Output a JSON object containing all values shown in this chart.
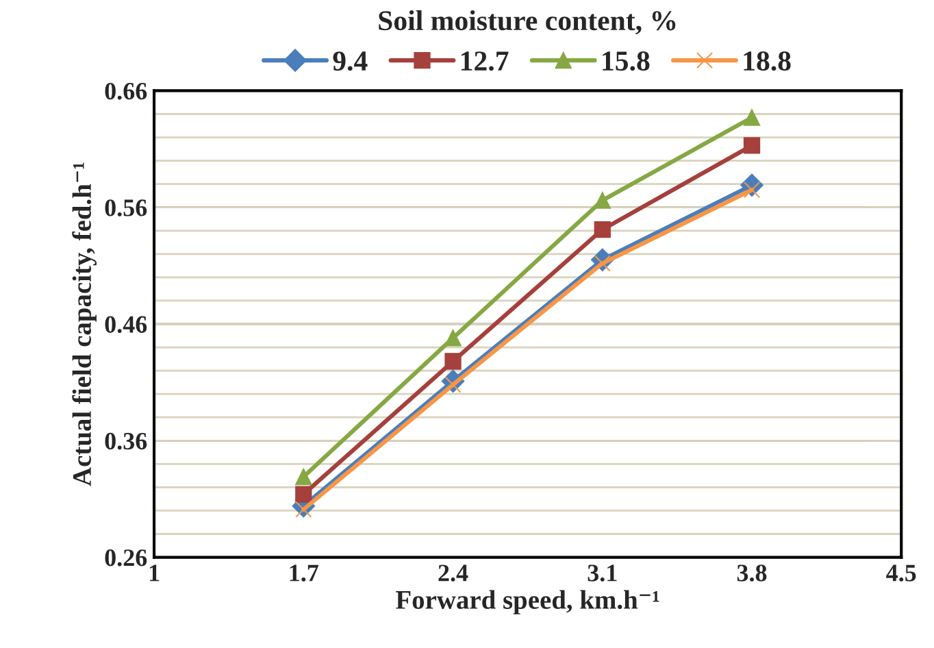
{
  "chart_data": {
    "type": "line",
    "xlabel": "Forward speed, km.h⁻¹",
    "ylabel": "Actual field capacity, fed.h⁻¹",
    "legend_title": "Soil moisture content, %",
    "legend": "top",
    "x": [
      1.7,
      2.4,
      3.1,
      3.8
    ],
    "series": [
      {
        "name": "9.4",
        "color": "#4a7ebb",
        "marker": "diamond",
        "values": [
          0.304,
          0.411,
          0.515,
          0.579
        ]
      },
      {
        "name": "12.7",
        "color": "#a5403d",
        "marker": "square",
        "values": [
          0.314,
          0.428,
          0.541,
          0.613
        ]
      },
      {
        "name": "15.8",
        "color": "#86a844",
        "marker": "triangle",
        "values": [
          0.329,
          0.448,
          0.566,
          0.637
        ]
      },
      {
        "name": "18.8",
        "color": "#f79646",
        "marker": "cross",
        "values": [
          0.301,
          0.408,
          0.512,
          0.575
        ]
      }
    ],
    "xlim": [
      1,
      4.5
    ],
    "xticks": [
      1,
      1.7,
      2.4,
      3.1,
      3.8,
      4.5
    ],
    "ylim": [
      0.26,
      0.66
    ],
    "yticks": [
      0.26,
      {
        "value": 0.28,
        "label": null
      },
      {
        "value": 0.3,
        "label": null
      },
      {
        "value": 0.32,
        "label": null
      },
      {
        "value": 0.34,
        "label": null
      },
      0.36,
      {
        "value": 0.38,
        "label": null
      },
      {
        "value": 0.4,
        "label": null
      },
      {
        "value": 0.42,
        "label": null
      },
      {
        "value": 0.44,
        "label": null
      },
      0.46,
      {
        "value": 0.48,
        "label": null
      },
      {
        "value": 0.5,
        "label": null
      },
      {
        "value": 0.52,
        "label": null
      },
      {
        "value": 0.54,
        "label": null
      },
      0.56,
      {
        "value": 0.58,
        "label": null
      },
      {
        "value": 0.6,
        "label": null
      },
      {
        "value": 0.62,
        "label": null
      },
      {
        "value": 0.64,
        "label": null
      },
      0.66
    ],
    "grid": "y"
  }
}
